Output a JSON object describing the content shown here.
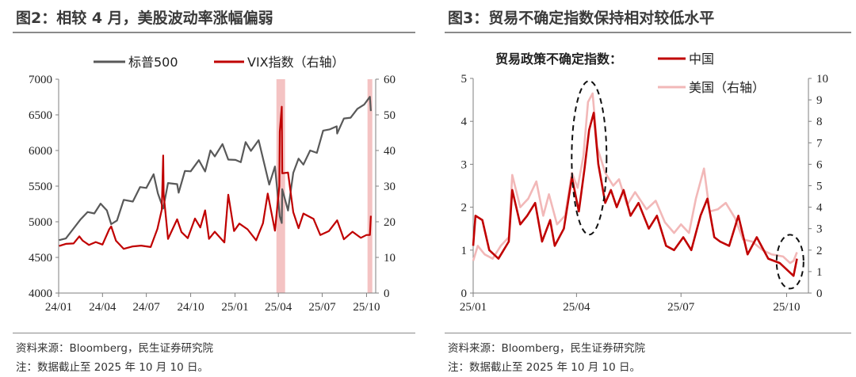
{
  "left": {
    "title": "图2：相较 4 月，美股波动率涨幅偏弱",
    "source": "资料来源：Bloomberg，民生证券研究院",
    "note": "注：数据截止至 2025 年 10 月 10 日。",
    "colors": {
      "spx": "#595959",
      "vix": "#c00000",
      "shade": "#f2b8b8"
    },
    "chart_data": {
      "type": "line",
      "x_ticks": [
        "24/01",
        "24/04",
        "24/07",
        "24/10",
        "25/01",
        "25/04",
        "25/07",
        "25/10"
      ],
      "y_left": {
        "ticks": [
          "7000",
          "6500",
          "6000",
          "5500",
          "5000",
          "4500",
          "4000"
        ],
        "lim": [
          4000,
          7000
        ]
      },
      "y_right": {
        "ticks": [
          "60",
          "50",
          "40",
          "30",
          "20",
          "10",
          "0"
        ],
        "lim": [
          0,
          60
        ]
      },
      "shaded_periods": [
        [
          "2025-03-28",
          "2025-04-15"
        ],
        [
          "2025-10-03",
          "2025-10-13"
        ]
      ],
      "series": [
        {
          "name": "标普500",
          "axis": "left",
          "color": "#595959",
          "points": [
            [
              "2024-01-02",
              4742
            ],
            [
              "2024-01-16",
              4765
            ],
            [
              "2024-02-01",
              4906
            ],
            [
              "2024-02-15",
              5030
            ],
            [
              "2024-03-01",
              5137
            ],
            [
              "2024-03-15",
              5117
            ],
            [
              "2024-03-28",
              5254
            ],
            [
              "2024-04-10",
              5160
            ],
            [
              "2024-04-19",
              4967
            ],
            [
              "2024-05-01",
              5018
            ],
            [
              "2024-05-15",
              5308
            ],
            [
              "2024-06-03",
              5283
            ],
            [
              "2024-06-18",
              5487
            ],
            [
              "2024-07-01",
              5475
            ],
            [
              "2024-07-16",
              5667
            ],
            [
              "2024-07-25",
              5399
            ],
            [
              "2024-08-05",
              5186
            ],
            [
              "2024-08-15",
              5543
            ],
            [
              "2024-09-03",
              5528
            ],
            [
              "2024-09-06",
              5408
            ],
            [
              "2024-09-19",
              5713
            ],
            [
              "2024-10-01",
              5708
            ],
            [
              "2024-10-18",
              5864
            ],
            [
              "2024-10-31",
              5705
            ],
            [
              "2024-11-11",
              6001
            ],
            [
              "2024-11-20",
              5917
            ],
            [
              "2024-12-06",
              6090
            ],
            [
              "2024-12-18",
              5872
            ],
            [
              "2025-01-02",
              5868
            ],
            [
              "2025-01-13",
              5836
            ],
            [
              "2025-01-23",
              6118
            ],
            [
              "2025-02-03",
              5994
            ],
            [
              "2025-02-19",
              6144
            ],
            [
              "2025-03-04",
              5778
            ],
            [
              "2025-03-13",
              5521
            ],
            [
              "2025-03-25",
              5776
            ],
            [
              "2025-04-04",
              5074
            ],
            [
              "2025-04-08",
              4982
            ],
            [
              "2025-04-09",
              5457
            ],
            [
              "2025-04-21",
              5158
            ],
            [
              "2025-05-02",
              5686
            ],
            [
              "2025-05-13",
              5886
            ],
            [
              "2025-05-23",
              5802
            ],
            [
              "2025-06-06",
              6000
            ],
            [
              "2025-06-20",
              5967
            ],
            [
              "2025-07-03",
              6279
            ],
            [
              "2025-07-17",
              6297
            ],
            [
              "2025-07-31",
              6339
            ],
            [
              "2025-08-01",
              6238
            ],
            [
              "2025-08-15",
              6449
            ],
            [
              "2025-08-29",
              6460
            ],
            [
              "2025-09-12",
              6584
            ],
            [
              "2025-09-26",
              6643
            ],
            [
              "2025-10-08",
              6753
            ],
            [
              "2025-10-10",
              6553
            ]
          ]
        },
        {
          "name": "VIX指数（右轴）",
          "axis": "right",
          "color": "#c00000",
          "points": [
            [
              "2024-01-02",
              13.2
            ],
            [
              "2024-01-16",
              13.8
            ],
            [
              "2024-02-01",
              13.9
            ],
            [
              "2024-02-13",
              15.9
            ],
            [
              "2024-02-20",
              14.7
            ],
            [
              "2024-03-04",
              13.5
            ],
            [
              "2024-03-18",
              14.3
            ],
            [
              "2024-04-01",
              13.6
            ],
            [
              "2024-04-15",
              17.9
            ],
            [
              "2024-04-19",
              18.7
            ],
            [
              "2024-04-29",
              14.7
            ],
            [
              "2024-05-15",
              12.4
            ],
            [
              "2024-06-03",
              13.1
            ],
            [
              "2024-06-20",
              13.3
            ],
            [
              "2024-07-10",
              12.9
            ],
            [
              "2024-07-24",
              18.0
            ],
            [
              "2024-08-02",
              23.4
            ],
            [
              "2024-08-05",
              38.6
            ],
            [
              "2024-08-06",
              27.7
            ],
            [
              "2024-08-15",
              15.2
            ],
            [
              "2024-09-03",
              20.7
            ],
            [
              "2024-09-12",
              17.1
            ],
            [
              "2024-09-25",
              15.4
            ],
            [
              "2024-10-10",
              20.9
            ],
            [
              "2024-10-21",
              18.4
            ],
            [
              "2024-10-31",
              23.2
            ],
            [
              "2024-11-08",
              15.2
            ],
            [
              "2024-11-20",
              17.2
            ],
            [
              "2024-12-10",
              14.2
            ],
            [
              "2024-12-18",
              27.6
            ],
            [
              "2024-12-30",
              17.4
            ],
            [
              "2025-01-10",
              19.5
            ],
            [
              "2025-01-27",
              17.9
            ],
            [
              "2025-02-14",
              14.8
            ],
            [
              "2025-02-28",
              19.6
            ],
            [
              "2025-03-10",
              27.9
            ],
            [
              "2025-03-25",
              17.5
            ],
            [
              "2025-04-03",
              30.0
            ],
            [
              "2025-04-04",
              45.3
            ],
            [
              "2025-04-08",
              52.3
            ],
            [
              "2025-04-09",
              33.6
            ],
            [
              "2025-04-21",
              33.8
            ],
            [
              "2025-05-02",
              22.7
            ],
            [
              "2025-05-13",
              18.2
            ],
            [
              "2025-05-23",
              22.3
            ],
            [
              "2025-06-13",
              20.8
            ],
            [
              "2025-06-27",
              16.3
            ],
            [
              "2025-07-15",
              17.4
            ],
            [
              "2025-08-01",
              20.4
            ],
            [
              "2025-08-15",
              15.1
            ],
            [
              "2025-09-02",
              17.2
            ],
            [
              "2025-09-19",
              15.5
            ],
            [
              "2025-10-01",
              16.3
            ],
            [
              "2025-10-08",
              16.3
            ],
            [
              "2025-10-10",
              21.7
            ]
          ]
        }
      ]
    }
  },
  "right": {
    "title": "图3：贸易不确定指数保持相对较低水平",
    "source": "资料来源：Bloomberg，民生证券研究院",
    "note": "注：数据截止至 2025 年 10 月 10 日。",
    "legend_prefix": "贸易政策不确定指数：",
    "colors": {
      "china": "#c00000",
      "us": "#f2b8b8",
      "ellipse": "#111111"
    },
    "chart_data": {
      "type": "line",
      "x_ticks": [
        "25/01",
        "25/04",
        "25/07",
        "25/10"
      ],
      "y_left": {
        "ticks": [
          "5",
          "4",
          "3",
          "2",
          "1",
          "0"
        ],
        "lim": [
          0,
          5
        ]
      },
      "y_right": {
        "ticks": [
          "10",
          "9",
          "8",
          "7",
          "6",
          "5",
          "4",
          "3",
          "2",
          "1",
          "0"
        ],
        "lim": [
          0,
          10
        ]
      },
      "series": [
        {
          "name": "中国",
          "axis": "left",
          "color": "#c00000",
          "points": [
            [
              "2025-01-01",
              1.1
            ],
            [
              "2025-01-03",
              1.8
            ],
            [
              "2025-01-09",
              1.7
            ],
            [
              "2025-01-15",
              1.0
            ],
            [
              "2025-01-23",
              0.8
            ],
            [
              "2025-02-01",
              1.2
            ],
            [
              "2025-02-04",
              2.4
            ],
            [
              "2025-02-11",
              1.6
            ],
            [
              "2025-02-17",
              1.8
            ],
            [
              "2025-02-24",
              2.1
            ],
            [
              "2025-03-02",
              1.2
            ],
            [
              "2025-03-09",
              1.7
            ],
            [
              "2025-03-13",
              1.1
            ],
            [
              "2025-03-21",
              1.5
            ],
            [
              "2025-03-28",
              2.7
            ],
            [
              "2025-04-03",
              1.9
            ],
            [
              "2025-04-08",
              2.9
            ],
            [
              "2025-04-12",
              3.8
            ],
            [
              "2025-04-16",
              4.2
            ],
            [
              "2025-04-20",
              3.0
            ],
            [
              "2025-04-26",
              2.1
            ],
            [
              "2025-05-01",
              2.4
            ],
            [
              "2025-05-06",
              2.0
            ],
            [
              "2025-05-12",
              2.4
            ],
            [
              "2025-05-18",
              1.8
            ],
            [
              "2025-05-25",
              2.1
            ],
            [
              "2025-06-03",
              1.5
            ],
            [
              "2025-06-10",
              1.8
            ],
            [
              "2025-06-18",
              1.1
            ],
            [
              "2025-06-25",
              1.0
            ],
            [
              "2025-07-03",
              1.3
            ],
            [
              "2025-07-10",
              1.0
            ],
            [
              "2025-07-18",
              1.8
            ],
            [
              "2025-07-24",
              2.2
            ],
            [
              "2025-07-30",
              1.3
            ],
            [
              "2025-08-04",
              1.2
            ],
            [
              "2025-08-12",
              1.1
            ],
            [
              "2025-08-20",
              1.8
            ],
            [
              "2025-08-28",
              0.9
            ],
            [
              "2025-09-05",
              1.3
            ],
            [
              "2025-09-15",
              0.8
            ],
            [
              "2025-09-25",
              0.7
            ],
            [
              "2025-10-03",
              0.5
            ],
            [
              "2025-10-07",
              0.4
            ],
            [
              "2025-10-10",
              0.8
            ]
          ]
        },
        {
          "name": "美国（右轴）",
          "axis": "right",
          "color": "#f2b8b8",
          "points": [
            [
              "2025-01-01",
              1.5
            ],
            [
              "2025-01-05",
              2.2
            ],
            [
              "2025-01-11",
              1.8
            ],
            [
              "2025-01-18",
              1.6
            ],
            [
              "2025-01-25",
              2.2
            ],
            [
              "2025-02-01",
              2.6
            ],
            [
              "2025-02-04",
              5.5
            ],
            [
              "2025-02-11",
              4.0
            ],
            [
              "2025-02-18",
              4.4
            ],
            [
              "2025-02-25",
              5.2
            ],
            [
              "2025-03-03",
              3.6
            ],
            [
              "2025-03-08",
              4.6
            ],
            [
              "2025-03-15",
              3.2
            ],
            [
              "2025-03-22",
              3.6
            ],
            [
              "2025-03-28",
              5.6
            ],
            [
              "2025-04-02",
              4.9
            ],
            [
              "2025-04-07",
              6.4
            ],
            [
              "2025-04-11",
              8.9
            ],
            [
              "2025-04-15",
              9.3
            ],
            [
              "2025-04-19",
              6.8
            ],
            [
              "2025-04-26",
              5.6
            ],
            [
              "2025-05-03",
              5.0
            ],
            [
              "2025-05-08",
              5.3
            ],
            [
              "2025-05-15",
              4.1
            ],
            [
              "2025-05-22",
              4.7
            ],
            [
              "2025-06-01",
              3.9
            ],
            [
              "2025-06-09",
              4.3
            ],
            [
              "2025-06-17",
              3.3
            ],
            [
              "2025-06-25",
              2.8
            ],
            [
              "2025-07-01",
              3.2
            ],
            [
              "2025-07-08",
              2.8
            ],
            [
              "2025-07-14",
              4.4
            ],
            [
              "2025-07-21",
              5.8
            ],
            [
              "2025-07-26",
              3.8
            ],
            [
              "2025-08-02",
              3.9
            ],
            [
              "2025-08-09",
              4.2
            ],
            [
              "2025-08-17",
              3.5
            ],
            [
              "2025-08-24",
              2.5
            ],
            [
              "2025-09-01",
              2.4
            ],
            [
              "2025-09-10",
              2.0
            ],
            [
              "2025-09-18",
              1.8
            ],
            [
              "2025-09-28",
              1.7
            ],
            [
              "2025-10-04",
              1.4
            ],
            [
              "2025-10-07",
              1.5
            ],
            [
              "2025-10-10",
              1.9
            ]
          ]
        }
      ]
    }
  }
}
